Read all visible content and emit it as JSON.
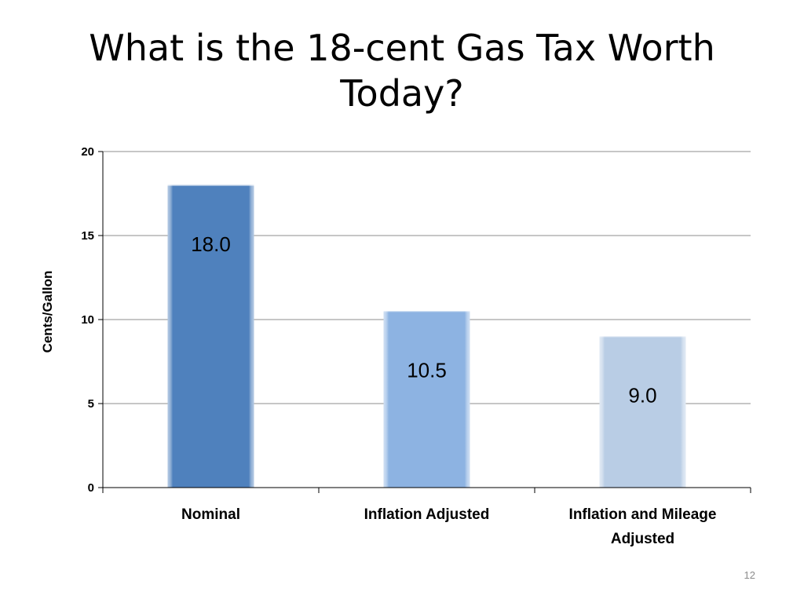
{
  "slide": {
    "title_lines": [
      "What is the 18-cent Gas Tax Worth",
      "Today?"
    ],
    "number": "12"
  },
  "colors": {
    "bar_nominal": "#4f81bd",
    "bar_inflation": "#8db3e2",
    "bar_inflation_mileage": "#b9cde5",
    "grid": "#8c8c8c"
  },
  "chart_data": {
    "type": "bar",
    "title": "What is the 18-cent Gas Tax Worth Today?",
    "xlabel": "",
    "ylabel": "Cents/Gallon",
    "ylim": [
      0,
      20
    ],
    "yticks": [
      0,
      5,
      10,
      15,
      20
    ],
    "grid": true,
    "legend": "none",
    "categories": [
      [
        "Nominal"
      ],
      [
        "Inflation Adjusted"
      ],
      [
        "Inflation and Mileage",
        "Adjusted"
      ]
    ],
    "values": [
      18.0,
      10.5,
      9.0
    ],
    "data_labels": [
      "18.0",
      "10.5",
      "9.0"
    ]
  }
}
